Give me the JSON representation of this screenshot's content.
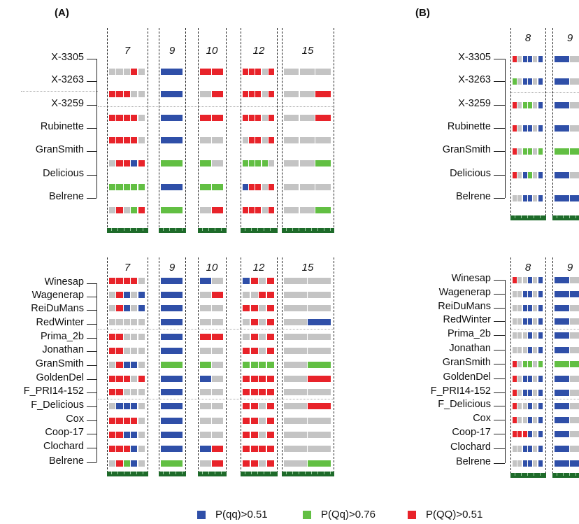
{
  "panel_labels": {
    "A": "(A)",
    "B": "(B)"
  },
  "colors": {
    "qq": "#2f4fa8",
    "Qq": "#62bf43",
    "QQ": "#e8232a",
    "missing": "#c4c4c4",
    "track": "#1e6b2a"
  },
  "legend": [
    {
      "key": "qq",
      "label": "P(qq)>0.51"
    },
    {
      "key": "Qq",
      "label": "P(Qq)>0.76"
    },
    {
      "key": "QQ",
      "label": "P(QQ)>0.51"
    }
  ],
  "panel_A_top": {
    "chromosomes": [
      "7",
      "9",
      "10",
      "12",
      "15"
    ],
    "accessions": [
      "X-3305",
      "X-3263",
      "X-3259",
      "Rubinette",
      "GranSmith",
      "Delicious",
      "Belrene"
    ],
    "rows": [
      [
        [
          "g",
          "g",
          "g",
          "r",
          "g"
        ],
        [
          "b"
        ],
        [
          "r",
          "r"
        ],
        [
          "r",
          "r",
          "r",
          "g",
          "r"
        ],
        [
          "g",
          "g",
          "g"
        ]
      ],
      [
        [
          "r",
          "r",
          "r",
          "g",
          "g"
        ],
        [
          "b"
        ],
        [
          "g",
          "r"
        ],
        [
          "r",
          "r",
          "r",
          "g",
          "r"
        ],
        [
          "g",
          "g",
          "r"
        ]
      ],
      [
        [
          "r",
          "r",
          "r",
          "r",
          "g"
        ],
        [
          "b"
        ],
        [
          "r",
          "r"
        ],
        [
          "r",
          "r",
          "r",
          "g",
          "r"
        ],
        [
          "g",
          "g",
          "r"
        ]
      ],
      [
        [
          "r",
          "r",
          "r",
          "r",
          "g"
        ],
        [
          "b"
        ],
        [
          "g",
          "g"
        ],
        [
          "g",
          "r",
          "r",
          "g",
          "r"
        ],
        [
          "g",
          "g",
          "g"
        ]
      ],
      [
        [
          "g",
          "r",
          "r",
          "b",
          "r"
        ],
        [
          "G"
        ],
        [
          "G",
          "g"
        ],
        [
          "G",
          "G",
          "G",
          "G",
          "g"
        ],
        [
          "g",
          "g",
          "G"
        ]
      ],
      [
        [
          "G",
          "G",
          "G",
          "G",
          "G"
        ],
        [
          "b"
        ],
        [
          "G",
          "G"
        ],
        [
          "b",
          "r",
          "r",
          "g",
          "r"
        ],
        [
          "g",
          "g",
          "g"
        ]
      ],
      [
        [
          "g",
          "r",
          "g",
          "G",
          "r"
        ],
        [
          "G"
        ],
        [
          "g",
          "r"
        ],
        [
          "r",
          "r",
          "r",
          "g",
          "r"
        ],
        [
          "g",
          "g",
          "G"
        ]
      ]
    ]
  },
  "panel_A_bottom": {
    "chromosomes": [
      "7",
      "9",
      "10",
      "12",
      "15"
    ],
    "accessions": [
      "Winesap",
      "Wagenerap",
      "ReiDuMans",
      "RedWinter",
      "Prima_2b",
      "Jonathan",
      "GranSmith",
      "GoldenDel",
      "F_PRI14-152",
      "F_Delicious",
      "Cox",
      "Coop-17",
      "Clochard",
      "Belrene"
    ],
    "rows": [
      [
        [
          "r",
          "r",
          "r",
          "r",
          "g"
        ],
        [
          "b"
        ],
        [
          "b",
          "g"
        ],
        [
          "b",
          "r",
          "g",
          "r"
        ],
        [
          "g",
          "g"
        ]
      ],
      [
        [
          "g",
          "r",
          "b",
          "g",
          "b"
        ],
        [
          "b"
        ],
        [
          "g",
          "r"
        ],
        [
          "g",
          "g",
          "r",
          "r"
        ],
        [
          "g",
          "g"
        ]
      ],
      [
        [
          "g",
          "r",
          "b",
          "g",
          "b"
        ],
        [
          "b"
        ],
        [
          "g",
          "g"
        ],
        [
          "r",
          "r",
          "g",
          "r"
        ],
        [
          "g",
          "g"
        ]
      ],
      [
        [
          "g",
          "g",
          "g",
          "g",
          "g"
        ],
        [
          "b"
        ],
        [
          "g",
          "g"
        ],
        [
          "g",
          "r",
          "g",
          "r"
        ],
        [
          "g",
          "b"
        ]
      ],
      [
        [
          "r",
          "r",
          "g",
          "g",
          "g"
        ],
        [
          "b"
        ],
        [
          "r",
          "r"
        ],
        [
          "g",
          "r",
          "g",
          "r"
        ],
        [
          "g",
          "g"
        ]
      ],
      [
        [
          "r",
          "r",
          "g",
          "g",
          "g"
        ],
        [
          "b"
        ],
        [
          "g",
          "g"
        ],
        [
          "r",
          "r",
          "g",
          "r"
        ],
        [
          "g",
          "g"
        ]
      ],
      [
        [
          "g",
          "r",
          "b",
          "b",
          "g"
        ],
        [
          "G"
        ],
        [
          "G",
          "g"
        ],
        [
          "G",
          "G",
          "G",
          "G"
        ],
        [
          "g",
          "G"
        ]
      ],
      [
        [
          "r",
          "r",
          "r",
          "g",
          "r"
        ],
        [
          "b"
        ],
        [
          "b",
          "g"
        ],
        [
          "r",
          "r",
          "r",
          "r"
        ],
        [
          "g",
          "r"
        ]
      ],
      [
        [
          "r",
          "r",
          "g",
          "g",
          "g"
        ],
        [
          "b"
        ],
        [
          "g",
          "g"
        ],
        [
          "r",
          "r",
          "r",
          "r"
        ],
        [
          "g",
          "g"
        ]
      ],
      [
        [
          "g",
          "b",
          "b",
          "b",
          "g"
        ],
        [
          "b"
        ],
        [
          "g",
          "g"
        ],
        [
          "r",
          "r",
          "g",
          "r"
        ],
        [
          "g",
          "r"
        ]
      ],
      [
        [
          "r",
          "r",
          "r",
          "r",
          "g"
        ],
        [
          "b"
        ],
        [
          "g",
          "g"
        ],
        [
          "r",
          "r",
          "g",
          "r"
        ],
        [
          "g",
          "g"
        ]
      ],
      [
        [
          "r",
          "r",
          "b",
          "b",
          "g"
        ],
        [
          "b"
        ],
        [
          "g",
          "g"
        ],
        [
          "r",
          "r",
          "g",
          "r"
        ],
        [
          "g",
          "g"
        ]
      ],
      [
        [
          "r",
          "r",
          "r",
          "b",
          "g"
        ],
        [
          "b"
        ],
        [
          "b",
          "r"
        ],
        [
          "r",
          "r",
          "r",
          "r"
        ],
        [
          "g",
          "g"
        ]
      ],
      [
        [
          "g",
          "r",
          "G",
          "b",
          "g"
        ],
        [
          "G"
        ],
        [
          "g",
          "r"
        ],
        [
          "r",
          "r",
          "g",
          "r"
        ],
        [
          "g",
          "G"
        ]
      ]
    ]
  },
  "panel_B_top": {
    "chromosomes": [
      "8",
      "9"
    ],
    "accessions": [
      "X-3305",
      "X-3263",
      "X-3259",
      "Rubinette",
      "GranSmith",
      "Delicious",
      "Belrene"
    ],
    "rows": [
      [
        [
          "r",
          "g",
          "b",
          "b",
          "g",
          "b"
        ],
        [
          "b",
          "g"
        ]
      ],
      [
        [
          "G",
          "g",
          "b",
          "b",
          "g",
          "b"
        ],
        [
          "b",
          "g"
        ]
      ],
      [
        [
          "r",
          "g",
          "G",
          "G",
          "g",
          "b"
        ],
        [
          "b",
          "g"
        ]
      ],
      [
        [
          "r",
          "g",
          "b",
          "b",
          "g",
          "b"
        ],
        [
          "b",
          "g"
        ]
      ],
      [
        [
          "r",
          "g",
          "G",
          "G",
          "g",
          "G"
        ],
        [
          "G",
          "G"
        ]
      ],
      [
        [
          "r",
          "g",
          "b",
          "G",
          "g",
          "b"
        ],
        [
          "b",
          "g"
        ]
      ],
      [
        [
          "g",
          "g",
          "b",
          "b",
          "g",
          "b"
        ],
        [
          "b",
          "b"
        ]
      ]
    ]
  },
  "panel_B_bottom": {
    "chromosomes": [
      "8",
      "9"
    ],
    "accessions": [
      "Winesap",
      "Wagenerap",
      "ReiDuMans",
      "RedWinter",
      "Prima_2b",
      "Jonathan",
      "GranSmith",
      "GoldenDel",
      "F_PRI14-152",
      "F_Delicious",
      "Cox",
      "Coop-17",
      "Clochard",
      "Belrene"
    ],
    "rows": [
      [
        [
          "r",
          "g",
          "g",
          "b",
          "g",
          "b"
        ],
        [
          "b",
          "g"
        ]
      ],
      [
        [
          "g",
          "g",
          "b",
          "b",
          "g",
          "b"
        ],
        [
          "b",
          "b"
        ]
      ],
      [
        [
          "g",
          "g",
          "b",
          "b",
          "g",
          "b"
        ],
        [
          "b",
          "g"
        ]
      ],
      [
        [
          "g",
          "g",
          "b",
          "b",
          "g",
          "b"
        ],
        [
          "b",
          "g"
        ]
      ],
      [
        [
          "g",
          "g",
          "g",
          "b",
          "g",
          "b"
        ],
        [
          "b",
          "g"
        ]
      ],
      [
        [
          "g",
          "g",
          "g",
          "b",
          "g",
          "b"
        ],
        [
          "b",
          "g"
        ]
      ],
      [
        [
          "r",
          "g",
          "G",
          "G",
          "g",
          "G"
        ],
        [
          "G",
          "G"
        ]
      ],
      [
        [
          "r",
          "g",
          "b",
          "b",
          "g",
          "b"
        ],
        [
          "b",
          "g"
        ]
      ],
      [
        [
          "r",
          "g",
          "b",
          "b",
          "g",
          "b"
        ],
        [
          "b",
          "g"
        ]
      ],
      [
        [
          "r",
          "g",
          "g",
          "b",
          "g",
          "b"
        ],
        [
          "b",
          "g"
        ]
      ],
      [
        [
          "r",
          "g",
          "g",
          "b",
          "g",
          "b"
        ],
        [
          "b",
          "g"
        ]
      ],
      [
        [
          "r",
          "r",
          "r",
          "b",
          "g",
          "b"
        ],
        [
          "b",
          "g"
        ]
      ],
      [
        [
          "g",
          "g",
          "b",
          "b",
          "g",
          "b"
        ],
        [
          "b",
          "g"
        ]
      ],
      [
        [
          "g",
          "g",
          "b",
          "b",
          "g",
          "b"
        ],
        [
          "b",
          "b"
        ]
      ]
    ]
  }
}
